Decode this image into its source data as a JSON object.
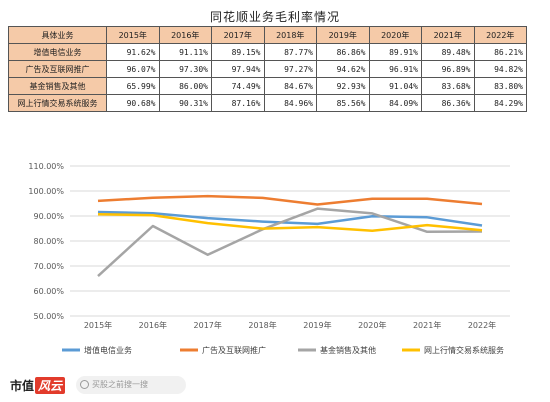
{
  "title": "同花顺业务毛利率情况",
  "table": {
    "header_label": "具体业务",
    "years": [
      "2015年",
      "2016年",
      "2017年",
      "2018年",
      "2019年",
      "2020年",
      "2021年",
      "2022年"
    ],
    "rows": [
      {
        "name": "增值电信业务",
        "values": [
          "91.62%",
          "91.11%",
          "89.15%",
          "87.77%",
          "86.86%",
          "89.91%",
          "89.48%",
          "86.21%"
        ]
      },
      {
        "name": "广告及互联网推广",
        "values": [
          "96.07%",
          "97.30%",
          "97.94%",
          "97.27%",
          "94.62%",
          "96.91%",
          "96.89%",
          "94.82%"
        ]
      },
      {
        "name": "基金销售及其他",
        "values": [
          "65.99%",
          "86.00%",
          "74.49%",
          "84.67%",
          "92.93%",
          "91.04%",
          "83.68%",
          "83.80%"
        ]
      },
      {
        "name": "网上行情交易系统服务",
        "values": [
          "90.68%",
          "90.31%",
          "87.16%",
          "84.96%",
          "85.56%",
          "84.09%",
          "86.36%",
          "84.29%"
        ]
      }
    ]
  },
  "chart_data": {
    "type": "line",
    "x": [
      "2015年",
      "2016年",
      "2017年",
      "2018年",
      "2019年",
      "2020年",
      "2021年",
      "2022年"
    ],
    "ylim": [
      50,
      100
    ],
    "yticks": [
      "50.00%",
      "60.00%",
      "70.00%",
      "80.00%",
      "90.00%",
      "100.00%",
      "110.00%"
    ],
    "ytick_values": [
      50,
      60,
      70,
      80,
      90,
      100,
      110
    ],
    "grid": true,
    "legend_position": "bottom",
    "series": [
      {
        "name": "增值电信业务",
        "color": "#5b9bd5",
        "values": [
          91.62,
          91.11,
          89.15,
          87.77,
          86.86,
          89.91,
          89.48,
          86.21
        ]
      },
      {
        "name": "广告及互联网推广",
        "color": "#ed7d31",
        "values": [
          96.07,
          97.3,
          97.94,
          97.27,
          94.62,
          96.91,
          96.89,
          94.82
        ]
      },
      {
        "name": "基金销售及其他",
        "color": "#a5a5a5",
        "values": [
          65.99,
          86.0,
          74.49,
          84.67,
          92.93,
          91.04,
          83.68,
          83.8
        ]
      },
      {
        "name": "网上行情交易系统服务",
        "color": "#ffc000",
        "values": [
          90.68,
          90.31,
          87.16,
          84.96,
          85.56,
          84.09,
          86.36,
          84.29
        ]
      }
    ]
  },
  "footer": {
    "brand": "市值",
    "brand_badge": "风云",
    "search_placeholder": "买股之前搜一搜"
  }
}
